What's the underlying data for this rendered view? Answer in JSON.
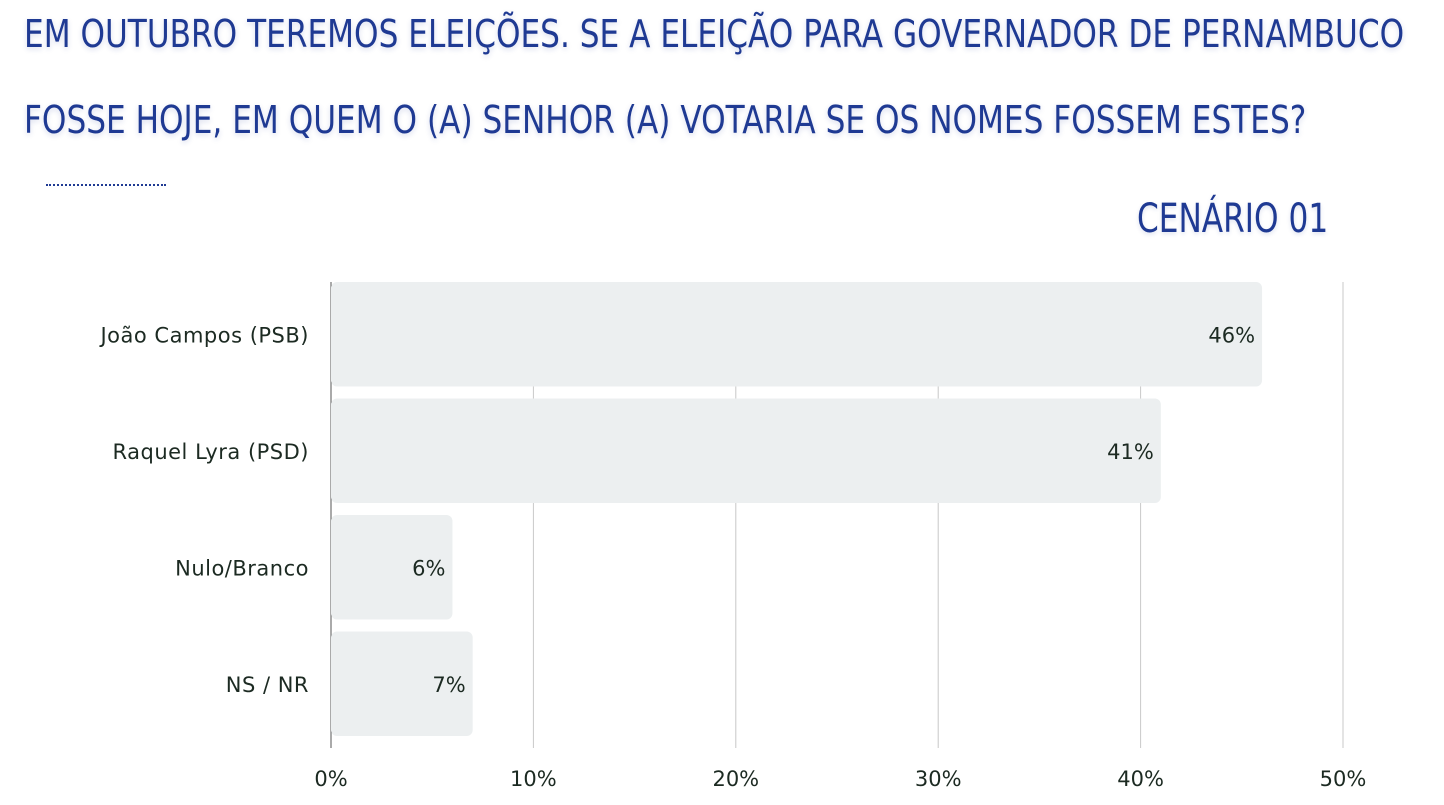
{
  "header": {
    "line1": "EM OUTUBRO TEREMOS ELEIÇÕES. SE A ELEIÇÃO PARA GOVERNADOR DE PERNAMBUCO",
    "line2": "FOSSE HOJE, EM QUEM O (A) SENHOR (A) VOTARIA SE OS NOMES FOSSEM ESTES?",
    "scenario": "CENÁRIO 01"
  },
  "colors": {
    "title": "#1f3a93",
    "bar": "#eceff0",
    "text": "#1c2a22",
    "grid": "#c8c8c8"
  },
  "chart_data": {
    "type": "bar",
    "orientation": "horizontal",
    "categories": [
      "João Campos (PSB)",
      "Raquel Lyra (PSD)",
      "Nulo/Branco",
      "NS / NR"
    ],
    "values": [
      46,
      41,
      6,
      7
    ],
    "value_labels": [
      "46%",
      "41%",
      "6%",
      "7%"
    ],
    "xlim": [
      0,
      50
    ],
    "xticks": [
      0,
      10,
      20,
      30,
      40,
      50
    ],
    "xtick_labels": [
      "0%",
      "10%",
      "20%",
      "30%",
      "40%",
      "50%"
    ],
    "grid": true,
    "legend": "none"
  }
}
